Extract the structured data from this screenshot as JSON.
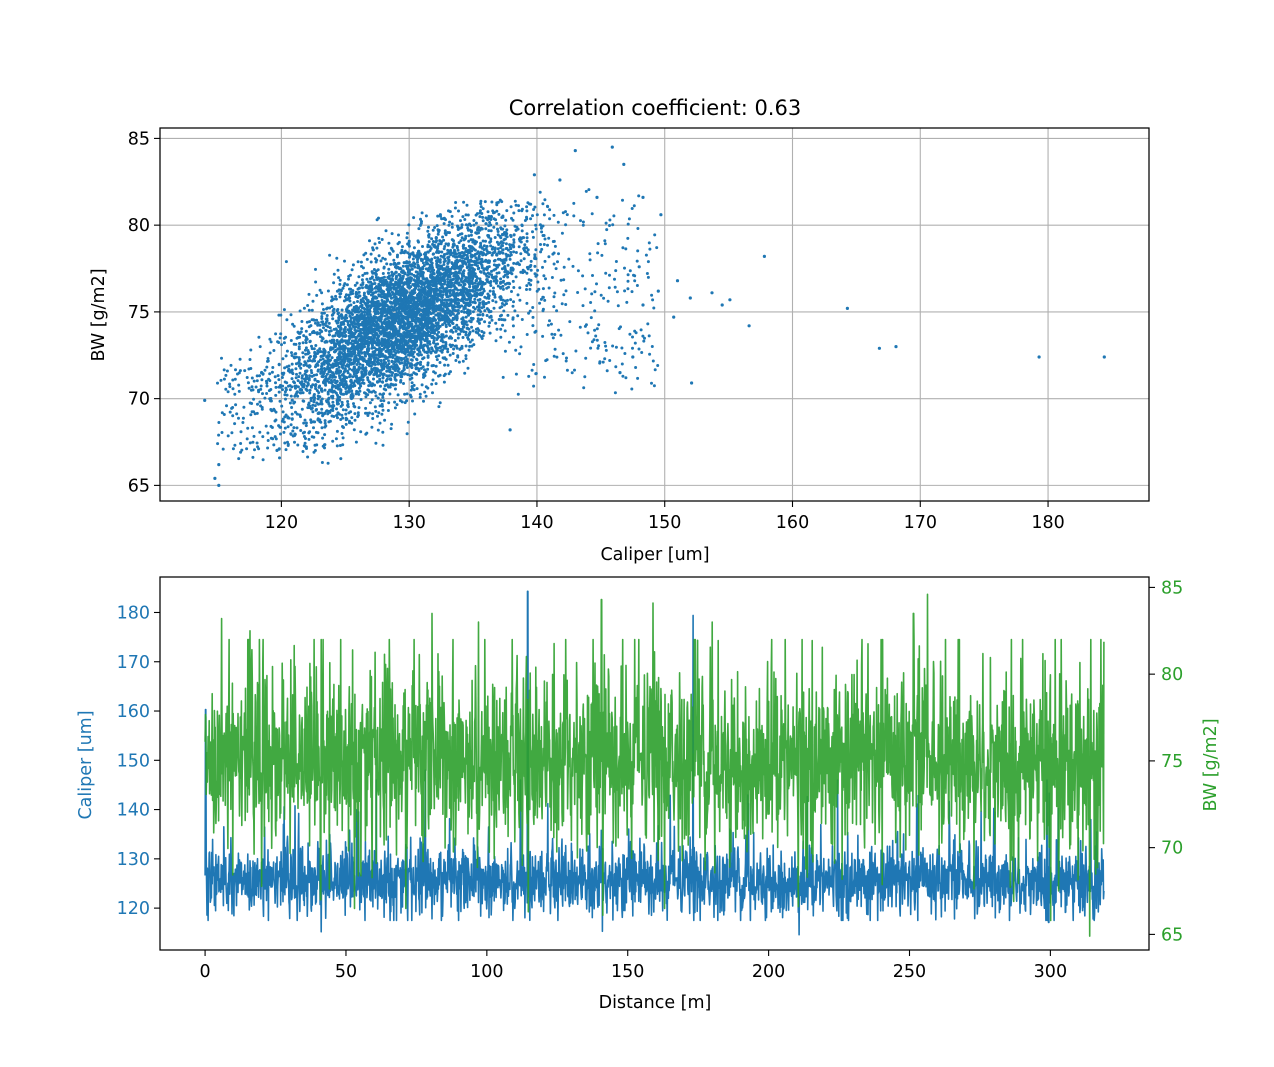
{
  "colors": {
    "caliper": "#1f77b4",
    "bw": "#2ca02c",
    "grid": "#b0b0b0",
    "axes": "#000000"
  },
  "chart_data": [
    {
      "type": "scatter",
      "title": "Correlation coefficient: 0.63",
      "xlabel": "Caliper [um]",
      "ylabel": "BW [g/m2]",
      "xlim": [
        110.5,
        187.9
      ],
      "ylim": [
        64.1,
        85.6
      ],
      "xticks": [
        120,
        130,
        140,
        150,
        160,
        170,
        180
      ],
      "yticks": [
        65,
        70,
        75,
        80,
        85
      ],
      "grid": true,
      "series": [
        {
          "color": "#1f77b4",
          "cluster": {
            "x_range": [
              114,
              146
            ],
            "y_range": [
              65.0,
              84.5
            ],
            "center": [
              130,
              74.5
            ]
          },
          "points": [
            [
              157.8,
              78.2
            ],
            [
              164.3,
              75.2
            ],
            [
              166.8,
              72.9
            ],
            [
              168.1,
              73.0
            ],
            [
              179.3,
              72.4
            ],
            [
              184.4,
              72.4
            ],
            [
              156.6,
              74.2
            ],
            [
              152.1,
              70.9
            ],
            [
              149.7,
              80.6
            ],
            [
              145.9,
              84.5
            ],
            [
              143.0,
              84.3
            ],
            [
              137.9,
              68.2
            ],
            [
              115.1,
              65.0
            ],
            [
              114.8,
              65.4
            ],
            [
              115.1,
              66.2
            ],
            [
              114.0,
              69.9
            ],
            [
              155.1,
              75.7
            ],
            [
              153.7,
              76.1
            ],
            [
              151.0,
              76.8
            ],
            [
              150.7,
              74.7
            ],
            [
              147.5,
              72.4
            ],
            [
              146.5,
              71.5
            ],
            [
              152.0,
              75.8
            ],
            [
              154.5,
              75.4
            ],
            [
              148.0,
              77.6
            ],
            [
              149.5,
              76.2
            ],
            [
              144.7,
              81.6
            ],
            [
              146.8,
              83.5
            ],
            [
              141.8,
              82.6
            ],
            [
              139.8,
              82.9
            ],
            [
              148.3,
              81.6
            ],
            [
              148.3,
              75.4
            ]
          ]
        }
      ]
    },
    {
      "type": "line",
      "xlabel": "Distance [m]",
      "xlim": [
        -16,
        335
      ],
      "xticks": [
        0,
        50,
        100,
        150,
        200,
        250,
        300
      ],
      "grid": false,
      "series": [
        {
          "name": "Caliper",
          "axis": "left",
          "ylabel": "Caliper [um]",
          "ylim": [
            111.5,
            187.2
          ],
          "yticks": [
            120,
            130,
            140,
            150,
            160,
            170,
            180
          ],
          "color": "#1f77b4",
          "x_range": [
            0,
            319
          ],
          "typical_range": [
            119,
            140
          ],
          "spikes": [
            [
              114.5,
              184.3
            ],
            [
              173.2,
              179.4
            ],
            [
              0.2,
              160.3
            ],
            [
              78.2,
              148.0
            ],
            [
              192.9,
              141.2
            ],
            [
              210.8,
              114.6
            ],
            [
              41.2,
              115.2
            ],
            [
              141.0,
              115.3
            ],
            [
              299.4,
              117.1
            ],
            [
              315.1,
              117.8
            ]
          ]
        },
        {
          "name": "BW",
          "axis": "right",
          "ylabel": "BW [g/m2]",
          "ylim": [
            64.1,
            85.6
          ],
          "yticks": [
            65,
            70,
            75,
            80,
            85
          ],
          "color": "#2ca02c",
          "x_range": [
            0,
            319
          ],
          "typical_range": [
            70.5,
            79.5
          ],
          "spikes": [
            [
              256.4,
              84.6
            ],
            [
              140.7,
              84.3
            ],
            [
              159.0,
              84.1
            ],
            [
              251.4,
              83.5
            ],
            [
              5.8,
              83.2
            ],
            [
              80.6,
              83.5
            ],
            [
              114.7,
              66.3
            ],
            [
              141.2,
              66.1
            ],
            [
              210.5,
              66.6
            ],
            [
              314.0,
              64.9
            ],
            [
              300.1,
              65.8
            ],
            [
              287.0,
              66.9
            ],
            [
              41.0,
              67.0
            ],
            [
              180.0,
              83.0
            ],
            [
              16.0,
              82.5
            ],
            [
              97.0,
              83.0
            ]
          ]
        }
      ]
    }
  ]
}
